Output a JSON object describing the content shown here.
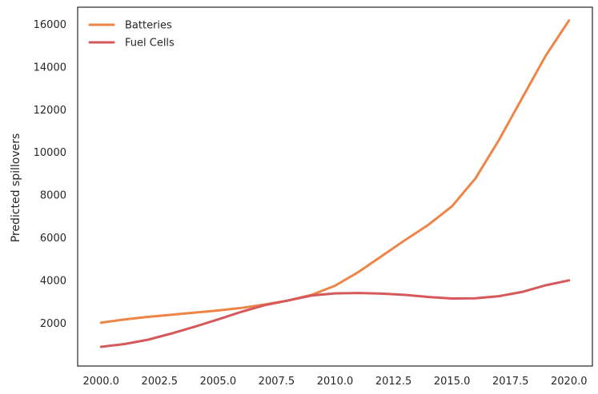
{
  "chart_data": {
    "type": "line",
    "title": "",
    "xlabel": "",
    "ylabel": "Predicted spillovers",
    "xlim": [
      1999.0,
      2021.0
    ],
    "ylim": [
      0,
      16800
    ],
    "grid": false,
    "legend_position": "top-left",
    "x_ticks": [
      2000.0,
      2002.5,
      2005.0,
      2007.5,
      2010.0,
      2012.5,
      2015.0,
      2017.5,
      2020.0
    ],
    "x_tick_labels": [
      "2000.0",
      "2002.5",
      "2005.0",
      "2007.5",
      "2010.0",
      "2012.5",
      "2015.0",
      "2017.5",
      "2020.0"
    ],
    "y_ticks": [
      2000,
      4000,
      6000,
      8000,
      10000,
      12000,
      14000,
      16000
    ],
    "y_tick_labels": [
      "2000",
      "4000",
      "6000",
      "8000",
      "10000",
      "12000",
      "14000",
      "16000"
    ],
    "x": [
      2000,
      2001,
      2002,
      2003,
      2004,
      2005,
      2006,
      2007,
      2008,
      2009,
      2010,
      2011,
      2012,
      2013,
      2014,
      2015,
      2016,
      2017,
      2018,
      2019,
      2020
    ],
    "series": [
      {
        "name": "Batteries",
        "color": "#ee8547",
        "values": [
          2030,
          2180,
          2300,
          2400,
          2500,
          2600,
          2720,
          2880,
          3070,
          3330,
          3760,
          4400,
          5150,
          5900,
          6620,
          7480,
          8780,
          10570,
          12550,
          14520,
          16180
        ]
      },
      {
        "name": "Fuel Cells",
        "color": "#d6585a",
        "values": [
          900,
          1030,
          1230,
          1520,
          1840,
          2180,
          2540,
          2850,
          3070,
          3300,
          3400,
          3420,
          3390,
          3330,
          3230,
          3160,
          3170,
          3270,
          3470,
          3780,
          4010
        ]
      }
    ]
  }
}
